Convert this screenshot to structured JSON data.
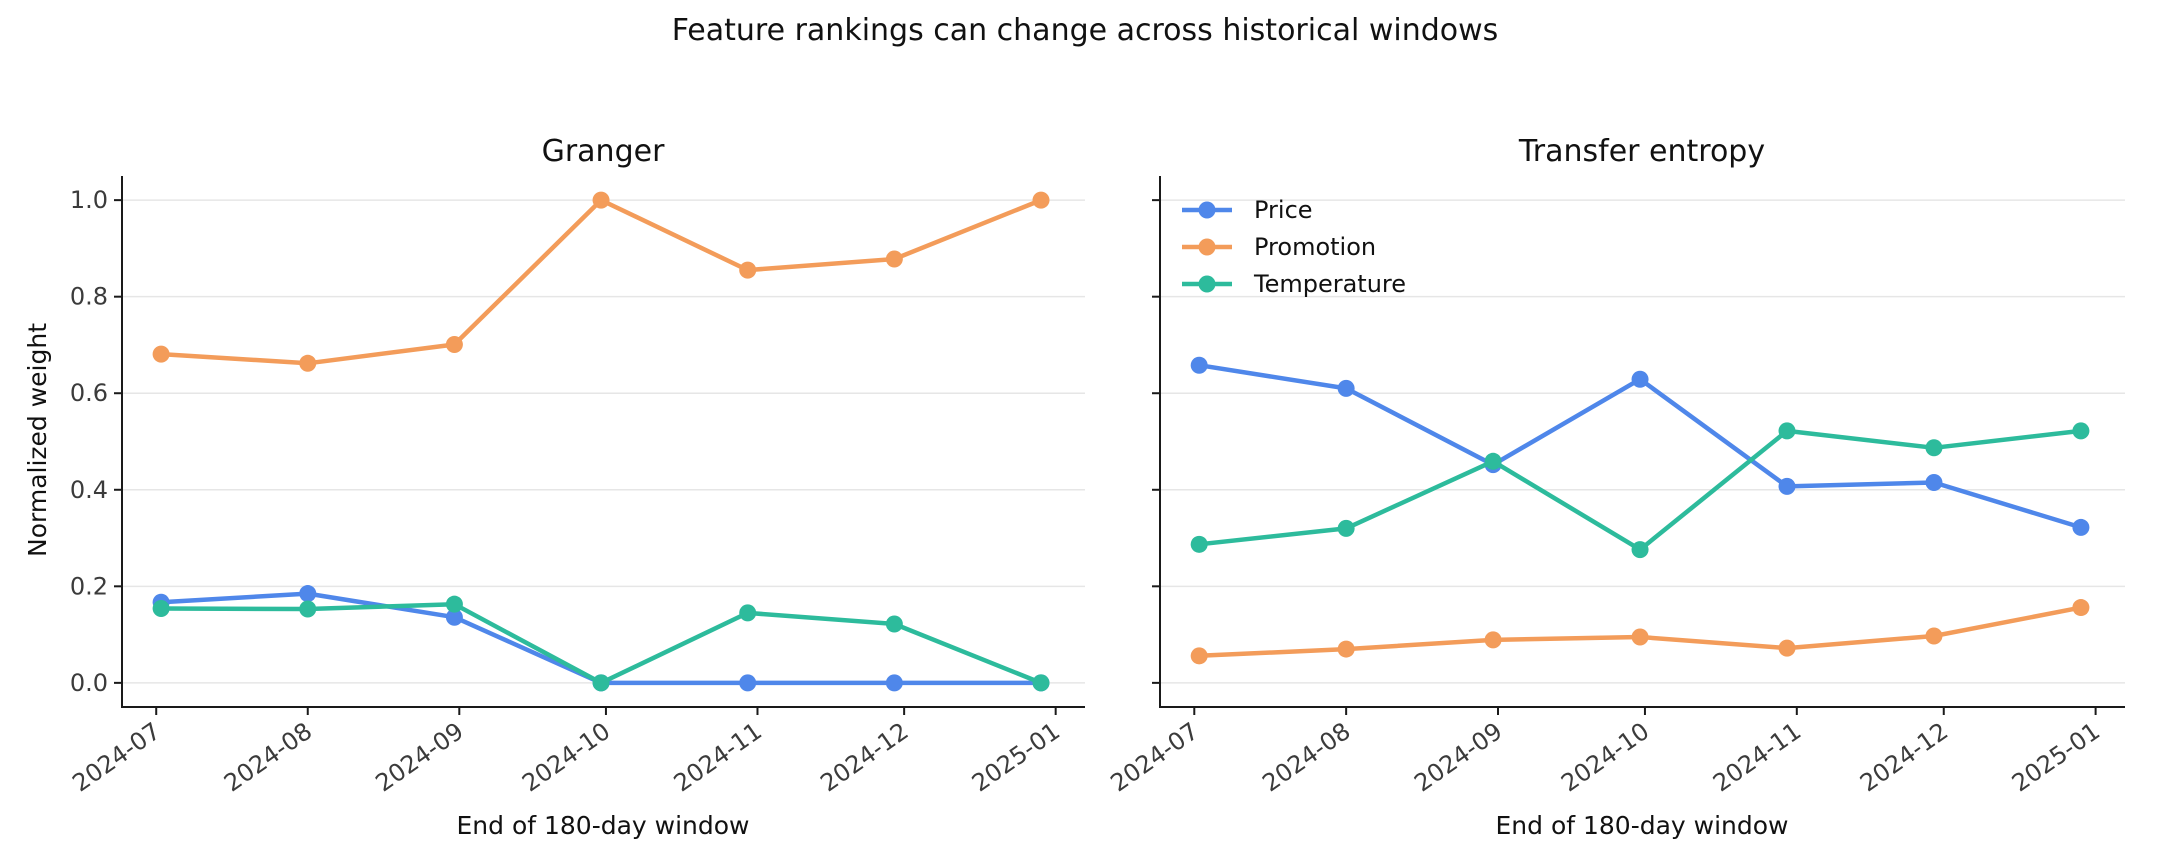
{
  "figure": {
    "title": "Feature rankings can change across historical windows"
  },
  "colors": {
    "Price": "#4f87ea",
    "Promotion": "#f39c5a",
    "Temperature": "#2dbb9c"
  },
  "chart_data": [
    {
      "type": "line",
      "title": "Granger",
      "xlabel": "End of 180-day window",
      "ylabel": "Normalized weight",
      "x": [
        "2024-07-02",
        "2024-08-01",
        "2024-08-31",
        "2024-09-30",
        "2024-10-30",
        "2024-11-29",
        "2024-12-29"
      ],
      "xticks": [
        "2024-07",
        "2024-08",
        "2024-09",
        "2024-10",
        "2024-11",
        "2024-12",
        "2025-01"
      ],
      "ylim": [
        -0.05,
        1.05
      ],
      "yticks": [
        "0.0",
        "0.2",
        "0.4",
        "0.6",
        "0.8",
        "1.0"
      ],
      "grid": true,
      "legend": "none",
      "series": [
        {
          "name": "Price",
          "values": [
            0.167,
            0.185,
            0.136,
            0.0,
            0.0,
            0.0,
            0.0
          ]
        },
        {
          "name": "Promotion",
          "values": [
            0.681,
            0.662,
            0.701,
            1.0,
            0.855,
            0.878,
            1.0
          ]
        },
        {
          "name": "Temperature",
          "values": [
            0.154,
            0.153,
            0.163,
            0.0,
            0.145,
            0.122,
            0.0
          ]
        }
      ]
    },
    {
      "type": "line",
      "title": "Transfer entropy",
      "xlabel": "End of 180-day window",
      "ylabel": "",
      "x": [
        "2024-07-02",
        "2024-08-01",
        "2024-08-31",
        "2024-09-30",
        "2024-10-30",
        "2024-11-29",
        "2024-12-29"
      ],
      "xticks": [
        "2024-07",
        "2024-08",
        "2024-09",
        "2024-10",
        "2024-11",
        "2024-12",
        "2025-01"
      ],
      "ylim": [
        -0.05,
        1.05
      ],
      "grid": true,
      "legend": "top-left",
      "series": [
        {
          "name": "Price",
          "values": [
            0.658,
            0.61,
            0.452,
            0.629,
            0.407,
            0.415,
            0.322
          ]
        },
        {
          "name": "Promotion",
          "values": [
            0.056,
            0.07,
            0.089,
            0.095,
            0.072,
            0.097,
            0.156
          ]
        },
        {
          "name": "Temperature",
          "values": [
            0.287,
            0.32,
            0.459,
            0.276,
            0.522,
            0.487,
            0.522
          ]
        }
      ]
    }
  ]
}
